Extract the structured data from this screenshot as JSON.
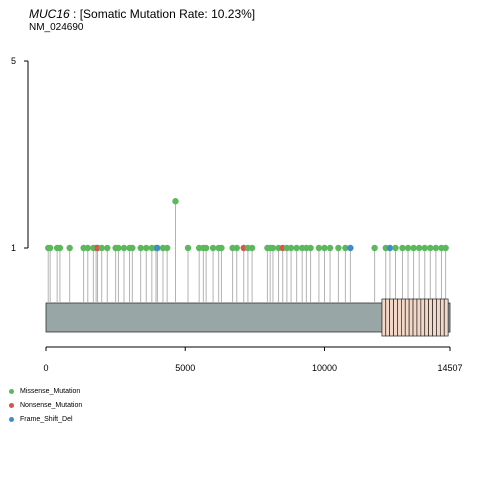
{
  "header": {
    "gene": "MUC16",
    "mutation_rate_text": ": [Somatic Mutation Rate: 10.23%]",
    "transcript": "NM_024690"
  },
  "colors": {
    "Missense_Mutation": "#5cb85c",
    "Nonsense_Mutation": "#d9534f",
    "Frame_Shift_Del": "#428bca",
    "protein_bar": "#98a6a6",
    "domain_fill": "#f3d8c8",
    "stem": "#b3b3b3"
  },
  "chart_data": {
    "type": "lollipop",
    "title": "",
    "xlim": [
      0,
      14507
    ],
    "ylim": [
      0,
      5
    ],
    "x_ticks": [
      0,
      5000,
      10000,
      14507
    ],
    "y_ticks": [
      1,
      5
    ],
    "protein_length": 14507,
    "domains": [
      {
        "start": 12063,
        "end": 12200
      },
      {
        "start": 12200,
        "end": 12340
      },
      {
        "start": 12340,
        "end": 12480
      },
      {
        "start": 12480,
        "end": 12620
      },
      {
        "start": 12620,
        "end": 12760
      },
      {
        "start": 12760,
        "end": 12900
      },
      {
        "start": 12900,
        "end": 13040
      },
      {
        "start": 13040,
        "end": 13180
      },
      {
        "start": 13180,
        "end": 13320
      },
      {
        "start": 13320,
        "end": 13460
      },
      {
        "start": 13460,
        "end": 13600
      },
      {
        "start": 13600,
        "end": 13740
      },
      {
        "start": 13740,
        "end": 13880
      },
      {
        "start": 13880,
        "end": 14020
      },
      {
        "start": 14020,
        "end": 14160
      },
      {
        "start": 14160,
        "end": 14300
      },
      {
        "start": 14300,
        "end": 14440
      }
    ],
    "legend": [
      "Missense_Mutation",
      "Nonsense_Mutation",
      "Frame_Shift_Del"
    ],
    "mutations": [
      {
        "pos": 80,
        "count": 1,
        "type": "Missense_Mutation"
      },
      {
        "pos": 150,
        "count": 1,
        "type": "Missense_Mutation"
      },
      {
        "pos": 400,
        "count": 1,
        "type": "Missense_Mutation"
      },
      {
        "pos": 500,
        "count": 1,
        "type": "Missense_Mutation"
      },
      {
        "pos": 850,
        "count": 1,
        "type": "Missense_Mutation"
      },
      {
        "pos": 1350,
        "count": 1,
        "type": "Missense_Mutation"
      },
      {
        "pos": 1500,
        "count": 1,
        "type": "Missense_Mutation"
      },
      {
        "pos": 1700,
        "count": 1,
        "type": "Missense_Mutation"
      },
      {
        "pos": 1800,
        "count": 1,
        "type": "Missense_Mutation"
      },
      {
        "pos": 1850,
        "count": 1,
        "type": "Nonsense_Mutation"
      },
      {
        "pos": 2000,
        "count": 1,
        "type": "Missense_Mutation"
      },
      {
        "pos": 2200,
        "count": 1,
        "type": "Missense_Mutation"
      },
      {
        "pos": 2500,
        "count": 1,
        "type": "Missense_Mutation"
      },
      {
        "pos": 2600,
        "count": 1,
        "type": "Missense_Mutation"
      },
      {
        "pos": 2800,
        "count": 1,
        "type": "Missense_Mutation"
      },
      {
        "pos": 3000,
        "count": 1,
        "type": "Missense_Mutation"
      },
      {
        "pos": 3100,
        "count": 1,
        "type": "Missense_Mutation"
      },
      {
        "pos": 3400,
        "count": 1,
        "type": "Missense_Mutation"
      },
      {
        "pos": 3600,
        "count": 1,
        "type": "Missense_Mutation"
      },
      {
        "pos": 3800,
        "count": 1,
        "type": "Missense_Mutation"
      },
      {
        "pos": 3950,
        "count": 1,
        "type": "Missense_Mutation"
      },
      {
        "pos": 4000,
        "count": 1,
        "type": "Frame_Shift_Del"
      },
      {
        "pos": 4200,
        "count": 1,
        "type": "Missense_Mutation"
      },
      {
        "pos": 4350,
        "count": 1,
        "type": "Missense_Mutation"
      },
      {
        "pos": 4650,
        "count": 2,
        "type": "Missense_Mutation"
      },
      {
        "pos": 5100,
        "count": 1,
        "type": "Missense_Mutation"
      },
      {
        "pos": 5500,
        "count": 1,
        "type": "Missense_Mutation"
      },
      {
        "pos": 5650,
        "count": 1,
        "type": "Missense_Mutation"
      },
      {
        "pos": 5750,
        "count": 1,
        "type": "Missense_Mutation"
      },
      {
        "pos": 6000,
        "count": 1,
        "type": "Missense_Mutation"
      },
      {
        "pos": 6200,
        "count": 1,
        "type": "Missense_Mutation"
      },
      {
        "pos": 6300,
        "count": 1,
        "type": "Missense_Mutation"
      },
      {
        "pos": 6700,
        "count": 1,
        "type": "Missense_Mutation"
      },
      {
        "pos": 6850,
        "count": 1,
        "type": "Missense_Mutation"
      },
      {
        "pos": 7100,
        "count": 1,
        "type": "Nonsense_Mutation"
      },
      {
        "pos": 7250,
        "count": 1,
        "type": "Missense_Mutation"
      },
      {
        "pos": 7400,
        "count": 1,
        "type": "Missense_Mutation"
      },
      {
        "pos": 7950,
        "count": 1,
        "type": "Missense_Mutation"
      },
      {
        "pos": 8050,
        "count": 1,
        "type": "Missense_Mutation"
      },
      {
        "pos": 8150,
        "count": 1,
        "type": "Missense_Mutation"
      },
      {
        "pos": 8350,
        "count": 1,
        "type": "Missense_Mutation"
      },
      {
        "pos": 8500,
        "count": 1,
        "type": "Nonsense_Mutation"
      },
      {
        "pos": 8650,
        "count": 1,
        "type": "Missense_Mutation"
      },
      {
        "pos": 8800,
        "count": 1,
        "type": "Missense_Mutation"
      },
      {
        "pos": 9000,
        "count": 1,
        "type": "Missense_Mutation"
      },
      {
        "pos": 9200,
        "count": 1,
        "type": "Missense_Mutation"
      },
      {
        "pos": 9350,
        "count": 1,
        "type": "Missense_Mutation"
      },
      {
        "pos": 9500,
        "count": 1,
        "type": "Missense_Mutation"
      },
      {
        "pos": 9800,
        "count": 1,
        "type": "Missense_Mutation"
      },
      {
        "pos": 10000,
        "count": 1,
        "type": "Missense_Mutation"
      },
      {
        "pos": 10200,
        "count": 1,
        "type": "Missense_Mutation"
      },
      {
        "pos": 10500,
        "count": 1,
        "type": "Missense_Mutation"
      },
      {
        "pos": 10750,
        "count": 1,
        "type": "Missense_Mutation"
      },
      {
        "pos": 10930,
        "count": 1,
        "type": "Frame_Shift_Del"
      },
      {
        "pos": 11800,
        "count": 1,
        "type": "Missense_Mutation"
      },
      {
        "pos": 12200,
        "count": 1,
        "type": "Missense_Mutation"
      },
      {
        "pos": 12350,
        "count": 1,
        "type": "Frame_Shift_Del"
      },
      {
        "pos": 12550,
        "count": 1,
        "type": "Missense_Mutation"
      },
      {
        "pos": 12800,
        "count": 1,
        "type": "Missense_Mutation"
      },
      {
        "pos": 13000,
        "count": 1,
        "type": "Missense_Mutation"
      },
      {
        "pos": 13200,
        "count": 1,
        "type": "Missense_Mutation"
      },
      {
        "pos": 13400,
        "count": 1,
        "type": "Missense_Mutation"
      },
      {
        "pos": 13600,
        "count": 1,
        "type": "Missense_Mutation"
      },
      {
        "pos": 13800,
        "count": 1,
        "type": "Missense_Mutation"
      },
      {
        "pos": 14000,
        "count": 1,
        "type": "Missense_Mutation"
      },
      {
        "pos": 14200,
        "count": 1,
        "type": "Missense_Mutation"
      },
      {
        "pos": 14350,
        "count": 1,
        "type": "Missense_Mutation"
      }
    ]
  }
}
